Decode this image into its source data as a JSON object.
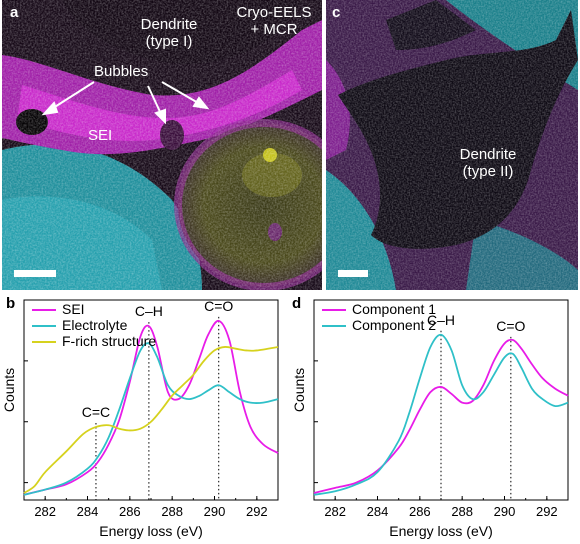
{
  "panel_a": {
    "letter": "a",
    "dendrite_label": [
      "Dendrite",
      "(type I)"
    ],
    "method_label": [
      "Cryo-EELS",
      "+ MCR"
    ],
    "bubbles_label": "Bubbles",
    "sei_label": "SEI"
  },
  "panel_c": {
    "letter": "c",
    "dendrite_label": [
      "Dendrite",
      "(type II)"
    ]
  },
  "colors": {
    "magenta": "#e81ce8",
    "cyan": "#2fc0c8",
    "yellow": "#d6d21e",
    "dark": "#160b18"
  },
  "chart_data": [
    {
      "type": "line",
      "panel": "b",
      "xlabel": "Energy loss (eV)",
      "ylabel": "Counts",
      "xlim": [
        281,
        293
      ],
      "ylim": [
        0,
        1.15
      ],
      "xticks": [
        282,
        284,
        286,
        288,
        290,
        292
      ],
      "annotations": [
        {
          "label": "C=C",
          "x": 284.4
        },
        {
          "label": "C–H",
          "x": 286.9
        },
        {
          "label": "C=O",
          "x": 290.2
        }
      ],
      "series": [
        {
          "name": "SEI",
          "color": "#e81ce8",
          "x": [
            281,
            282,
            283,
            284,
            284.5,
            285,
            285.5,
            286,
            286.5,
            286.9,
            287.3,
            287.8,
            288.3,
            288.8,
            289.3,
            289.7,
            290.2,
            290.7,
            291.2,
            291.7,
            292.3,
            293
          ],
          "y": [
            0.03,
            0.06,
            0.09,
            0.16,
            0.22,
            0.32,
            0.46,
            0.68,
            0.94,
            1.0,
            0.88,
            0.62,
            0.58,
            0.66,
            0.82,
            0.95,
            1.03,
            0.92,
            0.62,
            0.42,
            0.32,
            0.27
          ]
        },
        {
          "name": "Electrolyte",
          "color": "#2fc0c8",
          "x": [
            281,
            282,
            283,
            284,
            284.5,
            285,
            285.5,
            286,
            286.5,
            286.9,
            287.3,
            287.8,
            288.3,
            288.8,
            289.3,
            289.7,
            290.2,
            290.7,
            291.2,
            291.7,
            292.3,
            293
          ],
          "y": [
            0.03,
            0.06,
            0.1,
            0.18,
            0.25,
            0.36,
            0.52,
            0.7,
            0.86,
            0.9,
            0.82,
            0.66,
            0.6,
            0.58,
            0.6,
            0.63,
            0.66,
            0.62,
            0.58,
            0.56,
            0.56,
            0.58
          ]
        },
        {
          "name": "F-rich structure",
          "color": "#d6d21e",
          "x": [
            281,
            281.5,
            282,
            283,
            283.8,
            284.4,
            285,
            285.5,
            286,
            286.5,
            287,
            287.5,
            288,
            288.5,
            289,
            289.5,
            290,
            290.5,
            291,
            291.5,
            292,
            293
          ],
          "y": [
            0.04,
            0.08,
            0.16,
            0.28,
            0.38,
            0.42,
            0.43,
            0.41,
            0.4,
            0.41,
            0.45,
            0.52,
            0.6,
            0.66,
            0.72,
            0.8,
            0.86,
            0.88,
            0.87,
            0.86,
            0.86,
            0.88
          ]
        }
      ]
    },
    {
      "type": "line",
      "panel": "d",
      "xlabel": "Energy loss (eV)",
      "ylabel": "Counts",
      "xlim": [
        281,
        293
      ],
      "ylim": [
        0,
        1.15
      ],
      "xticks": [
        282,
        284,
        286,
        288,
        290,
        292
      ],
      "annotations": [
        {
          "label": "C–H",
          "x": 287.0
        },
        {
          "label": "C=O",
          "x": 290.3
        }
      ],
      "series": [
        {
          "name": "Component 1",
          "color": "#e81ce8",
          "x": [
            281,
            282,
            283,
            284,
            285,
            285.5,
            286,
            286.5,
            287,
            287.5,
            288,
            288.5,
            289,
            289.5,
            290,
            290.4,
            290.8,
            291.3,
            291.8,
            292.4,
            293
          ],
          "y": [
            0.04,
            0.07,
            0.1,
            0.17,
            0.3,
            0.4,
            0.52,
            0.62,
            0.65,
            0.61,
            0.56,
            0.57,
            0.66,
            0.8,
            0.9,
            0.92,
            0.87,
            0.78,
            0.7,
            0.64,
            0.6
          ]
        },
        {
          "name": "Component 2",
          "color": "#2fc0c8",
          "x": [
            281,
            282,
            283,
            284,
            285,
            285.5,
            286,
            286.5,
            287,
            287.5,
            288,
            288.5,
            289,
            289.5,
            290,
            290.4,
            290.8,
            291.3,
            291.8,
            292.4,
            293
          ],
          "y": [
            0.03,
            0.05,
            0.09,
            0.16,
            0.34,
            0.5,
            0.7,
            0.88,
            0.95,
            0.86,
            0.66,
            0.58,
            0.62,
            0.72,
            0.82,
            0.84,
            0.76,
            0.64,
            0.58,
            0.54,
            0.56
          ]
        }
      ]
    }
  ]
}
